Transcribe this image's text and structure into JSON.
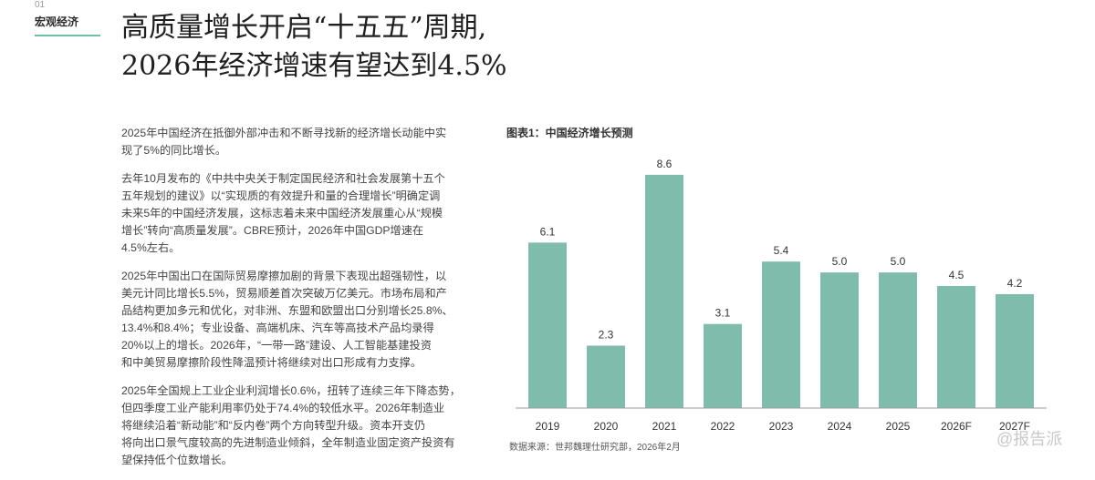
{
  "section": {
    "number": "01",
    "label": "宏观经济"
  },
  "title_lines": [
    "高质量增长开启“十五五”周期,",
    "2026年经济增速有望达到4.5%"
  ],
  "paragraphs": [
    [
      "2025年中国经济在抵御外部冲击和不断寻找新的经济增长动能中实",
      "现了5%的同比增长。"
    ],
    [
      "去年10月发布的《中共中央关于制定国民经济和社会发展第十五个",
      "五年规划的建议》以“实现质的有效提升和量的合理增长”明确定调",
      "未来5年的中国经济发展，这标志着未来中国经济发展重心从“规模",
      "增长”转向“高质量发展”。CBRE预计，2026年中国GDP增速在",
      "4.5%左右。"
    ],
    [
      "2025年中国出口在国际贸易摩擦加剧的背景下表现出超强韧性，以",
      "美元计同比增长5.5%，贸易顺差首次突破万亿美元。市场布局和产",
      "品结构更加多元和优化，对非洲、东盟和欧盟出口分别增长25.8%、",
      "13.4%和8.4%；专业设备、高端机床、汽车等高技术产品均录得",
      "20%以上的增长。2026年，“一带一路”建设、人工智能基建投资",
      "和中美贸易摩擦阶段性降温预计将继续对出口形成有力支撑。"
    ],
    [
      "2025年全国规上工业企业利润增长0.6%，扭转了连续三年下降态势，",
      "但四季度工业产能利用率仍处于74.4%的较低水平。2026年制造业",
      "将继续沿着“新动能”和“反内卷”两个方向转型升级。资本开支仍",
      "将向出口景气度较高的先进制造业倾斜，全年制造业固定资产投资有",
      "望保持低个位数增长。"
    ]
  ],
  "chart_data": {
    "type": "bar",
    "title": "图表1：中国经济增长预测",
    "categories": [
      "2019",
      "2020",
      "2021",
      "2022",
      "2023",
      "2024",
      "2025",
      "2026F",
      "2027F"
    ],
    "values": [
      6.1,
      2.3,
      8.6,
      3.1,
      5.4,
      5.0,
      5.0,
      4.5,
      4.2
    ],
    "value_labels": [
      "6.1",
      "2.3",
      "8.6",
      "3.1",
      "5.4",
      "5.0",
      "5.0",
      "4.5",
      "4.2"
    ],
    "xlabel": "",
    "ylabel": "",
    "ylim": [
      0,
      9
    ],
    "grid": false,
    "legend": "none",
    "bar_color": "#80bcac"
  },
  "source": "数据来源：世邦魏理仕研究部，2026年2月",
  "watermark": "@报告派"
}
